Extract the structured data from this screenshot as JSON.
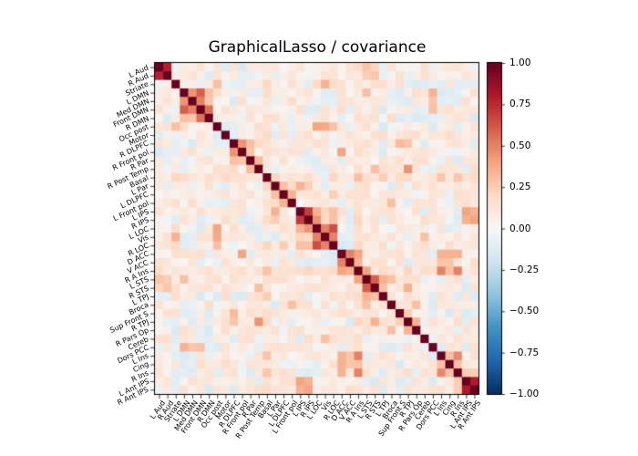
{
  "figure": {
    "background": "#ffffff",
    "text_color": "#000000"
  },
  "chart_data": {
    "type": "heatmap",
    "title": "GraphicalLasso / covariance",
    "xlabel": "",
    "ylabel": "",
    "vmin": -1.0,
    "vmax": 1.0,
    "grid": false,
    "colormap": "RdBu_r",
    "colormap_stops": [
      "#053061",
      "#2166ac",
      "#4393c3",
      "#92c5de",
      "#d1e5f0",
      "#f7f7f7",
      "#fddbc7",
      "#f4a582",
      "#d6604d",
      "#b2182b",
      "#67001f"
    ],
    "colorbar": {
      "position": "right",
      "tick_labels": [
        "1.00",
        "0.75",
        "0.50",
        "0.25",
        "0.00",
        "−0.25",
        "−0.50",
        "−0.75",
        "−1.00"
      ],
      "tick_values": [
        1.0,
        0.75,
        0.5,
        0.25,
        0.0,
        -0.25,
        -0.5,
        -0.75,
        -1.0
      ]
    },
    "x_tick_rotation_deg": 55,
    "y_tick_rotation_deg": 25,
    "labels": [
      "L Aud",
      "R Aud",
      "Striate",
      "L DMN",
      "Med DMN",
      "Front DMN",
      "R DMN",
      "Occ post",
      "Motor",
      "R DLPFC",
      "R Front pol",
      "R Par",
      "R Post Temp",
      "Basal",
      "L Par",
      "L DLPFC",
      "L Front pol",
      "L IPS",
      "R IPS",
      "L LOC",
      "Vis",
      "R LOC",
      "D ACC",
      "V ACC",
      "R A Ins",
      "L STS",
      "R STS",
      "L TPJ",
      "Broca",
      "Sup Front S",
      "R TPJ",
      "R Pars Op",
      "Cereb",
      "Dors PCC",
      "L Ins",
      "Cing",
      "R Ins",
      "L Ant IPS",
      "R Ant IPS"
    ],
    "matrix_info": {
      "size": 39,
      "symmetric": true,
      "diagonal": 1.0,
      "background_base": 0.02,
      "background_noise": 0.16,
      "negative_fraction": 0.18,
      "warm_rows": [
        13,
        24
      ],
      "warm_bias": 0.04,
      "seed": 421,
      "notable_cells": [
        [
          0,
          1,
          0.78
        ],
        [
          0,
          25,
          0.28
        ],
        [
          1,
          25,
          0.25
        ],
        [
          0,
          26,
          0.22
        ],
        [
          1,
          26,
          0.28
        ],
        [
          2,
          7,
          0.3
        ],
        [
          2,
          19,
          0.2
        ],
        [
          2,
          20,
          0.35
        ],
        [
          2,
          21,
          0.2
        ],
        [
          3,
          4,
          0.45
        ],
        [
          3,
          5,
          0.6
        ],
        [
          3,
          6,
          0.3
        ],
        [
          4,
          5,
          0.5
        ],
        [
          4,
          6,
          0.28
        ],
        [
          5,
          6,
          0.55
        ],
        [
          3,
          33,
          0.35
        ],
        [
          4,
          33,
          0.28
        ],
        [
          5,
          33,
          0.3
        ],
        [
          6,
          33,
          0.25
        ],
        [
          3,
          25,
          0.3
        ],
        [
          7,
          19,
          0.4
        ],
        [
          7,
          20,
          0.38
        ],
        [
          7,
          21,
          0.3
        ],
        [
          9,
          10,
          0.45
        ],
        [
          9,
          11,
          0.3
        ],
        [
          10,
          11,
          0.28
        ],
        [
          11,
          12,
          0.32
        ],
        [
          9,
          12,
          0.2
        ],
        [
          9,
          29,
          0.32
        ],
        [
          9,
          30,
          0.28
        ],
        [
          10,
          22,
          0.4
        ],
        [
          12,
          30,
          0.45
        ],
        [
          12,
          26,
          0.3
        ],
        [
          8,
          13,
          0.2
        ],
        [
          13,
          24,
          0.3
        ],
        [
          13,
          34,
          0.28
        ],
        [
          13,
          36,
          0.28
        ],
        [
          13,
          27,
          0.25
        ],
        [
          14,
          15,
          0.3
        ],
        [
          15,
          16,
          0.35
        ],
        [
          14,
          16,
          0.2
        ],
        [
          14,
          17,
          0.35
        ],
        [
          14,
          18,
          0.25
        ],
        [
          15,
          21,
          0.25
        ],
        [
          17,
          18,
          0.7
        ],
        [
          17,
          19,
          0.35
        ],
        [
          18,
          19,
          0.45
        ],
        [
          19,
          20,
          0.5
        ],
        [
          19,
          21,
          0.65
        ],
        [
          20,
          21,
          0.5
        ],
        [
          17,
          21,
          0.3
        ],
        [
          18,
          21,
          0.3
        ],
        [
          17,
          20,
          0.22
        ],
        [
          18,
          20,
          0.2
        ],
        [
          17,
          37,
          0.4
        ],
        [
          17,
          38,
          0.35
        ],
        [
          18,
          37,
          0.35
        ],
        [
          18,
          38,
          0.4
        ],
        [
          22,
          23,
          0.5
        ],
        [
          22,
          24,
          0.4
        ],
        [
          23,
          24,
          0.35
        ],
        [
          22,
          34,
          0.35
        ],
        [
          22,
          35,
          0.35
        ],
        [
          22,
          36,
          0.35
        ],
        [
          23,
          34,
          0.28
        ],
        [
          23,
          35,
          0.28
        ],
        [
          24,
          25,
          0.4
        ],
        [
          24,
          34,
          0.5
        ],
        [
          24,
          35,
          0.3
        ],
        [
          24,
          36,
          0.5
        ],
        [
          25,
          26,
          0.6
        ],
        [
          25,
          27,
          0.35
        ],
        [
          26,
          27,
          0.3
        ],
        [
          26,
          30,
          0.35
        ],
        [
          25,
          28,
          0.3
        ],
        [
          16,
          28,
          0.3
        ],
        [
          28,
          31,
          0.3
        ],
        [
          29,
          30,
          0.25
        ],
        [
          30,
          31,
          0.35
        ],
        [
          20,
          32,
          0.3
        ],
        [
          34,
          35,
          0.3
        ],
        [
          34,
          36,
          0.48
        ],
        [
          35,
          36,
          0.3
        ],
        [
          37,
          38,
          0.8
        ],
        [
          36,
          37,
          0.25
        ],
        [
          36,
          38,
          0.25
        ],
        [
          2,
          30,
          -0.1
        ],
        [
          2,
          31,
          -0.14
        ],
        [
          2,
          32,
          -0.12
        ],
        [
          2,
          33,
          -0.08
        ],
        [
          2,
          38,
          -0.1
        ],
        [
          5,
          31,
          -0.1
        ],
        [
          5,
          32,
          -0.08
        ],
        [
          6,
          30,
          -0.1
        ],
        [
          6,
          31,
          -0.15
        ],
        [
          6,
          32,
          -0.12
        ],
        [
          6,
          33,
          -0.1
        ],
        [
          6,
          34,
          -0.08
        ],
        [
          7,
          8,
          -0.12
        ],
        [
          7,
          9,
          -0.1
        ],
        [
          11,
          18,
          -0.1
        ],
        [
          11,
          19,
          -0.12
        ],
        [
          12,
          19,
          -0.1
        ],
        [
          12,
          20,
          -0.1
        ],
        [
          13,
          20,
          -0.08
        ],
        [
          3,
          20,
          -0.12
        ],
        [
          4,
          20,
          -0.1
        ],
        [
          4,
          21,
          -0.1
        ],
        [
          5,
          23,
          -0.1
        ],
        [
          6,
          22,
          -0.1
        ],
        [
          17,
          23,
          -0.1
        ],
        [
          18,
          23,
          -0.12
        ],
        [
          19,
          23,
          -0.1
        ],
        [
          20,
          22,
          -0.1
        ],
        [
          20,
          23,
          -0.08
        ],
        [
          21,
          22,
          -0.14
        ],
        [
          21,
          23,
          -0.12
        ],
        [
          27,
          33,
          -0.12
        ],
        [
          28,
          33,
          -0.14
        ],
        [
          29,
          33,
          -0.1
        ],
        [
          3,
          28,
          -0.1
        ],
        [
          3,
          29,
          -0.12
        ],
        [
          4,
          29,
          -0.1
        ],
        [
          2,
          34,
          -0.1
        ],
        [
          3,
          34,
          -0.14
        ],
        [
          3,
          35,
          -0.12
        ],
        [
          4,
          35,
          -0.1
        ],
        [
          3,
          36,
          -0.1
        ],
        [
          4,
          36,
          -0.12
        ],
        [
          29,
          37,
          -0.14
        ],
        [
          29,
          38,
          -0.1
        ],
        [
          30,
          37,
          -0.1
        ]
      ]
    }
  }
}
